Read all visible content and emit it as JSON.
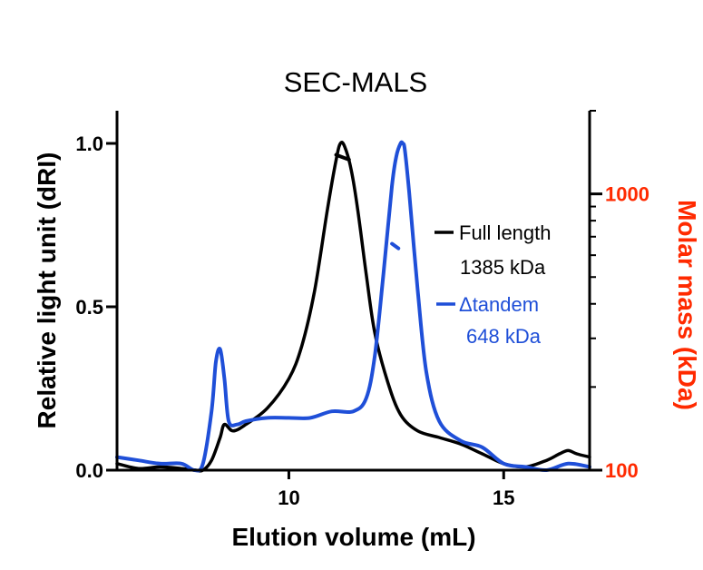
{
  "chart_data": {
    "type": "line",
    "title": "SEC-MALS",
    "xlabel": "Elution volume (mL)",
    "ylabel": "Relative light unit (dRI)",
    "y2label": "Molar mass (kDa)",
    "xlim": [
      6.0,
      17.0
    ],
    "ylim": [
      0.0,
      1.1
    ],
    "y2lim": [
      100,
      2000
    ],
    "y2scale": "log",
    "xticks": [
      {
        "value": 10,
        "label": "10"
      },
      {
        "value": 15,
        "label": "15"
      }
    ],
    "yticks": [
      {
        "value": 0.0,
        "label": "0.0"
      },
      {
        "value": 0.5,
        "label": "0.5"
      },
      {
        "value": 1.0,
        "label": "1.0"
      }
    ],
    "y2ticks": [
      {
        "value": 100,
        "label": "100"
      },
      {
        "value": 1000,
        "label": "1000"
      }
    ],
    "grid": false,
    "legend_position": "right",
    "series": [
      {
        "name": "Full length",
        "sublabel": "1385 kDa",
        "color": "#000000",
        "x": [
          6.0,
          6.5,
          7.0,
          7.5,
          7.8,
          8.0,
          8.2,
          8.4,
          8.5,
          8.7,
          9.0,
          9.5,
          10.0,
          10.3,
          10.6,
          10.9,
          11.1,
          11.2,
          11.3,
          11.45,
          11.6,
          11.8,
          12.0,
          12.3,
          12.6,
          13.0,
          13.5,
          14.0,
          14.5,
          15.0,
          15.5,
          16.0,
          16.3,
          16.5,
          16.7,
          17.0
        ],
        "y": [
          0.02,
          0.005,
          0.01,
          0.005,
          0.0,
          0.0,
          0.03,
          0.1,
          0.14,
          0.12,
          0.14,
          0.19,
          0.28,
          0.38,
          0.55,
          0.8,
          0.95,
          1.0,
          0.99,
          0.92,
          0.8,
          0.6,
          0.42,
          0.27,
          0.17,
          0.12,
          0.1,
          0.08,
          0.05,
          0.02,
          0.01,
          0.03,
          0.05,
          0.06,
          0.05,
          0.04
        ],
        "molar_mass_x": [
          11.1,
          11.4
        ],
        "molar_mass_y": [
          1385,
          1330
        ]
      },
      {
        "name": "Δtandem",
        "sublabel": "648 kDa",
        "color": "#1f4fd8",
        "x": [
          6.0,
          6.5,
          7.0,
          7.5,
          7.8,
          8.0,
          8.2,
          8.3,
          8.4,
          8.5,
          8.6,
          8.8,
          9.0,
          9.5,
          10.0,
          10.5,
          11.0,
          11.5,
          11.8,
          12.0,
          12.2,
          12.4,
          12.5,
          12.6,
          12.65,
          12.7,
          12.8,
          13.0,
          13.2,
          13.5,
          14.0,
          14.5,
          15.0,
          15.5,
          16.0,
          16.5,
          17.0
        ],
        "y": [
          0.04,
          0.03,
          0.02,
          0.02,
          0.0,
          0.02,
          0.18,
          0.33,
          0.37,
          0.28,
          0.15,
          0.14,
          0.15,
          0.16,
          0.16,
          0.16,
          0.18,
          0.18,
          0.22,
          0.35,
          0.6,
          0.87,
          0.96,
          1.0,
          1.0,
          0.98,
          0.85,
          0.55,
          0.3,
          0.15,
          0.09,
          0.07,
          0.02,
          0.01,
          0.0,
          0.02,
          0.01
        ],
        "molar_mass_x": [
          12.4,
          12.55
        ],
        "molar_mass_y": [
          660,
          635
        ]
      }
    ]
  }
}
